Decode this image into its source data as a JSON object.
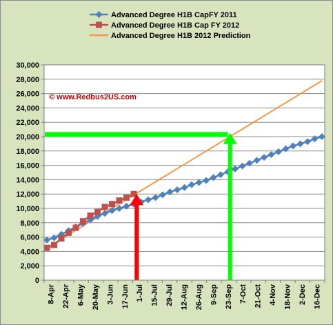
{
  "chart_data": {
    "type": "line",
    "watermark": "© www.Redbus2US.com",
    "categories": [
      "8-Apr",
      "22-Apr",
      "6-May",
      "20-May",
      "3-Jun",
      "17-Jun",
      "1-Jul",
      "15-Jul",
      "29-Jul",
      "12-Aug",
      "26-Aug",
      "9-Sep",
      "23-Sep",
      "7-Oct",
      "21-Oct",
      "4-Nov",
      "18-Nov",
      "2-Dec",
      "16-Dec"
    ],
    "x_range": [
      0,
      38
    ],
    "ylim": [
      0,
      30000
    ],
    "yticks": [
      0,
      2000,
      4000,
      6000,
      8000,
      10000,
      12000,
      14000,
      16000,
      18000,
      20000,
      22000,
      24000,
      26000,
      28000,
      30000
    ],
    "yticks_labels": [
      "0",
      "2,000",
      "4,000",
      "6,000",
      "8,000",
      "10,000",
      "12,000",
      "14,000",
      "16,000",
      "18,000",
      "20,000",
      "22,000",
      "24,000",
      "26,000",
      "28,000",
      "30,000"
    ],
    "grid": true,
    "legend_position": "top",
    "series": [
      {
        "name": "Advanced Degree H1B CapFY  2011",
        "color": "#4f81bd",
        "marker": "diamond",
        "x": [
          0,
          1,
          2,
          3,
          4,
          5,
          6,
          7,
          8,
          9,
          10,
          11,
          12,
          13,
          14,
          15,
          16,
          17,
          18,
          19,
          20,
          21,
          22,
          23,
          24,
          25,
          26,
          27,
          28,
          29,
          30,
          31,
          32,
          33,
          34,
          35,
          36,
          37,
          38
        ],
        "values": [
          5600,
          5900,
          6400,
          6900,
          7400,
          7900,
          8400,
          8900,
          9300,
          9700,
          10000,
          10300,
          10600,
          10900,
          11200,
          11500,
          11900,
          12300,
          12600,
          12900,
          13300,
          13600,
          13900,
          14300,
          14700,
          15100,
          15500,
          15900,
          16300,
          16700,
          17100,
          17500,
          17900,
          18300,
          18700,
          19000,
          19300,
          19700,
          20000
        ]
      },
      {
        "name": "Advanced Degree H1B Cap FY 2012",
        "color": "#c0504d",
        "marker": "square",
        "x": [
          0,
          1,
          2,
          3,
          4,
          5,
          6,
          7,
          8,
          9,
          10,
          11,
          12
        ],
        "values": [
          4500,
          4900,
          5800,
          6600,
          7300,
          8200,
          9000,
          9500,
          10200,
          10600,
          11100,
          11500,
          12000
        ]
      },
      {
        "name": "Advanced Degree H1B 2012 Prediction",
        "color": "#f79646",
        "marker": "none",
        "x": [
          0,
          38
        ],
        "values": [
          4500,
          27800
        ]
      }
    ],
    "annotations": [
      {
        "kind": "hline",
        "color": "#00ff00",
        "x_from": 0,
        "x_to": 25,
        "y": 20300
      },
      {
        "kind": "arrow-up",
        "color": "#ff0000",
        "x": 12.4,
        "y_from": 0,
        "y_to": 12000
      },
      {
        "kind": "arrow-up",
        "color": "#00ff00",
        "x": 25.3,
        "y_from": 0,
        "y_to": 20500
      }
    ]
  }
}
